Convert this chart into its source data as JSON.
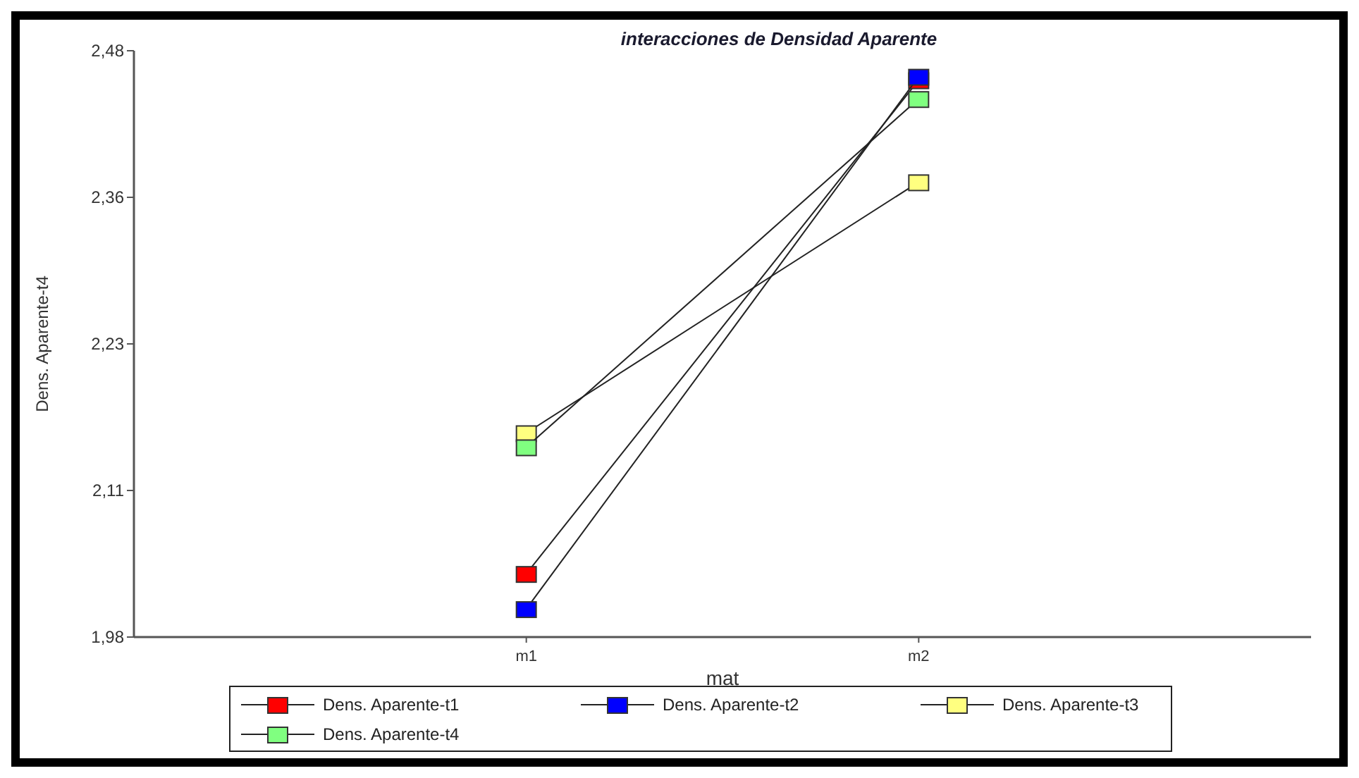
{
  "chart_data": {
    "type": "line",
    "title": "interacciones de Densidad Aparente",
    "xlabel": "mat",
    "ylabel": "Dens. Aparente-t4",
    "categories": [
      "m1",
      "m2"
    ],
    "series": [
      {
        "name": "Dens. Aparente-t1",
        "color": "#ff0000",
        "values": [
          2.034,
          2.455
        ]
      },
      {
        "name": "Dens. Aparente-t2",
        "color": "#0000ff",
        "values": [
          2.004,
          2.458
        ]
      },
      {
        "name": "Dens. Aparente-t3",
        "color": "#ffff80",
        "values": [
          2.154,
          2.368
        ]
      },
      {
        "name": "Dens. Aparente-t4",
        "color": "#80ff80",
        "values": [
          2.142,
          2.439
        ]
      }
    ],
    "ylim": [
      1.98,
      2.48
    ],
    "yticks": [
      {
        "value": 1.98,
        "label": "1,98"
      },
      {
        "value": 2.105,
        "label": "2,11"
      },
      {
        "value": 2.23,
        "label": "2,23"
      },
      {
        "value": 2.355,
        "label": "2,36"
      },
      {
        "value": 2.48,
        "label": "2,48"
      }
    ],
    "grid": false,
    "legend": "bottom",
    "marker": "square",
    "line_style": "solid"
  }
}
